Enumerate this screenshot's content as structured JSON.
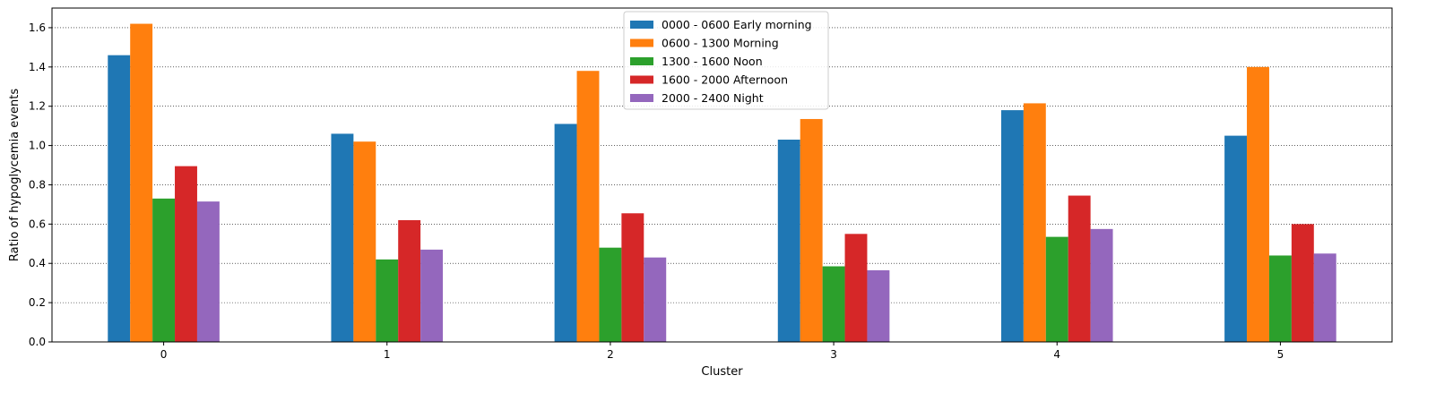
{
  "chart_data": {
    "type": "bar",
    "xlabel": "Cluster",
    "ylabel": "Ratio of hypoglycemia events",
    "categories": [
      "0",
      "1",
      "2",
      "3",
      "4",
      "5"
    ],
    "ylim": [
      0,
      1.7
    ],
    "yticks": [
      0.0,
      0.2,
      0.4,
      0.6,
      0.8,
      1.0,
      1.2,
      1.4,
      1.6
    ],
    "ytick_labels": [
      "0.0",
      "0.2",
      "0.4",
      "0.6",
      "0.8",
      "1.0",
      "1.2",
      "1.4",
      "1.6"
    ],
    "grid": "horizontal dotted",
    "legend_position": "top-center",
    "series": [
      {
        "name": "0000 - 0600 Early morning",
        "color": "#1f77b4",
        "values": [
          1.46,
          1.06,
          1.11,
          1.03,
          1.18,
          1.05
        ]
      },
      {
        "name": "0600 - 1300 Morning",
        "color": "#ff7f0e",
        "values": [
          1.62,
          1.02,
          1.38,
          1.135,
          1.215,
          1.4
        ]
      },
      {
        "name": "1300 - 1600 Noon",
        "color": "#2ca02c",
        "values": [
          0.73,
          0.42,
          0.48,
          0.385,
          0.535,
          0.44
        ]
      },
      {
        "name": "1600 - 2000 Afternoon",
        "color": "#d62728",
        "values": [
          0.895,
          0.62,
          0.655,
          0.55,
          0.745,
          0.6
        ]
      },
      {
        "name": "2000 - 2400 Night",
        "color": "#9467bd",
        "values": [
          0.715,
          0.47,
          0.43,
          0.365,
          0.575,
          0.45
        ]
      }
    ]
  }
}
